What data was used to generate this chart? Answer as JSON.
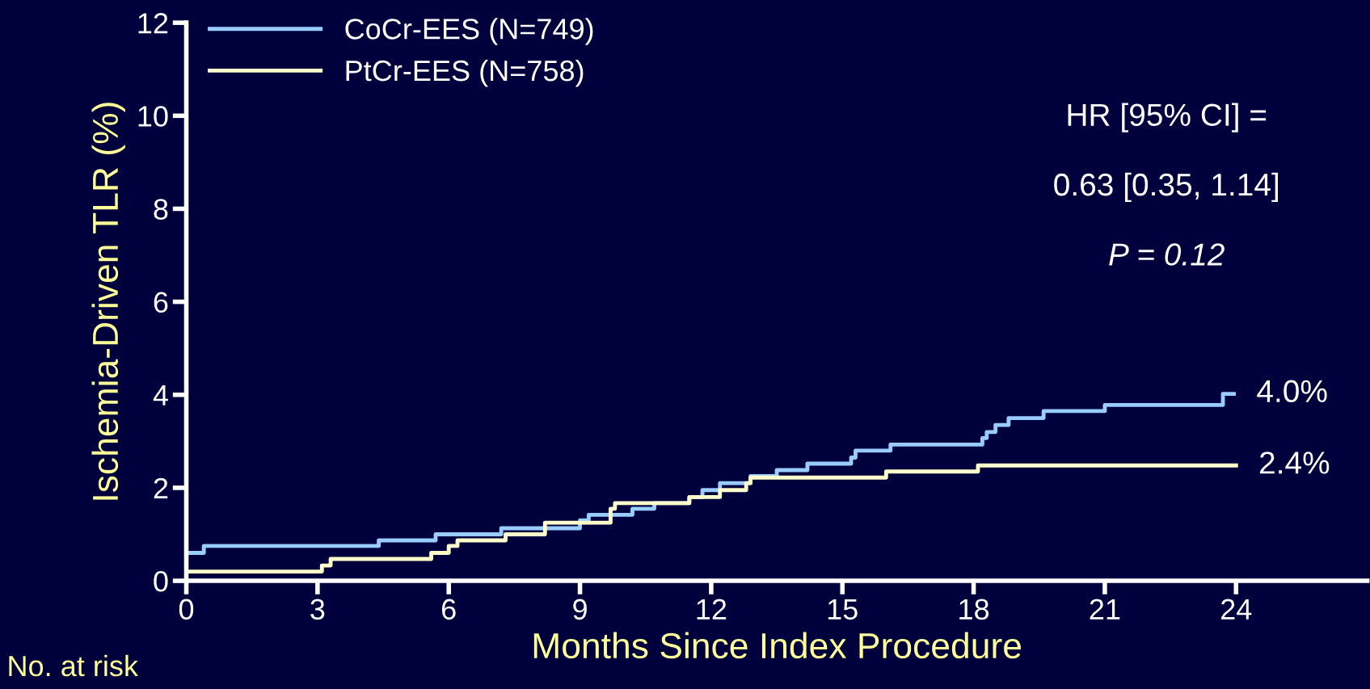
{
  "chart_data": {
    "type": "step",
    "xlabel": "Months Since Index Procedure",
    "ylabel": "Ischemia-Driven TLR (%)",
    "xlim": [
      0,
      27
    ],
    "xticks": [
      0,
      3,
      6,
      9,
      12,
      15,
      18,
      21,
      24
    ],
    "ylim": [
      0,
      12
    ],
    "yticks": [
      0,
      2,
      4,
      6,
      8,
      10,
      12
    ],
    "grid": false,
    "legend": "top left",
    "marker": "none",
    "line_style": "solid",
    "series": [
      {
        "name": "CoCr-EES (N=749)",
        "color": "#99ccff",
        "x": [
          0,
          0.4,
          4.4,
          5.7,
          7.2,
          9.0,
          9.2,
          10.2,
          10.7,
          11.5,
          11.8,
          12.2,
          12.9,
          13.5,
          14.2,
          15.2,
          15.3,
          16.1,
          18.2,
          18.3,
          18.5,
          18.8,
          19.6,
          21.0,
          23.7,
          23.95
        ],
        "values": [
          0.6,
          0.75,
          0.87,
          1.0,
          1.13,
          1.3,
          1.42,
          1.55,
          1.67,
          1.8,
          1.95,
          2.1,
          2.25,
          2.38,
          2.52,
          2.65,
          2.8,
          2.93,
          3.07,
          3.2,
          3.35,
          3.5,
          3.65,
          3.78,
          4.02,
          4.02
        ]
      },
      {
        "name": "PtCr-EES (N=758)",
        "color": "#ffffcc",
        "x": [
          0,
          3.1,
          3.3,
          5.6,
          6.0,
          6.2,
          7.3,
          8.2,
          9.7,
          9.8,
          11.5,
          12.2,
          12.8,
          12.9,
          16.0,
          18.1,
          24.0
        ],
        "values": [
          0.2,
          0.33,
          0.47,
          0.6,
          0.75,
          0.87,
          1.0,
          1.25,
          1.55,
          1.67,
          1.8,
          1.95,
          2.1,
          2.22,
          2.35,
          2.48,
          2.48
        ]
      }
    ],
    "annotations": [
      {
        "text": "4.0%",
        "x": 23.95,
        "y": 4.02
      },
      {
        "text": "2.4%",
        "x": 24.0,
        "y": 2.48
      },
      "HR [95% CI] =",
      "0.63 [0.35, 1.14]",
      "P = 0.12",
      "No. at risk"
    ]
  }
}
